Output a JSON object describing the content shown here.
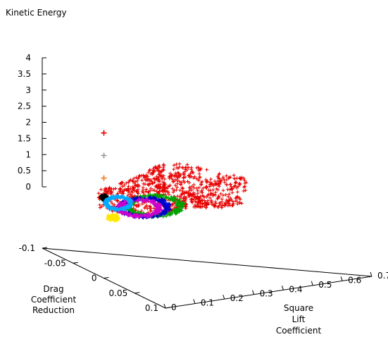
{
  "chart_data": {
    "type": "scatter",
    "projection": "3d",
    "title": "",
    "zlabel": "Kinetic Energy",
    "xlabel": "Square Lift Coefficient",
    "ylabel": "Drag Coefficient Reduction",
    "xlim": [
      0,
      0.7
    ],
    "ylim": [
      -0.1,
      0.1
    ],
    "zlim": [
      0,
      4
    ],
    "x_ticks": [
      "0",
      "0.1",
      "0.2",
      "0.3",
      "0.4",
      "0.5",
      "0.6",
      "0.7"
    ],
    "y_ticks": [
      "-0.1",
      "-0.05",
      "0",
      "0.05",
      "0.1"
    ],
    "z_ticks": [
      "0",
      "0.5",
      "1",
      "1.5",
      "2",
      "2.5",
      "3",
      "3.5",
      "4"
    ],
    "grid": false,
    "legend": "none",
    "series": [
      {
        "color": "#e60000",
        "marker": "plus",
        "kind": "cloud",
        "x_range": [
          0.05,
          0.65
        ],
        "y_range": [
          -0.05,
          0.08
        ],
        "z_range": [
          0.0,
          0.6
        ]
      },
      {
        "color": "#e60000",
        "marker": "plus",
        "kind": "point",
        "x": 0.0,
        "y": 0.0,
        "z": 2.6
      },
      {
        "color": "#999999",
        "marker": "plus",
        "kind": "point",
        "x": 0.0,
        "y": 0.0,
        "z": 1.9
      },
      {
        "color": "#f07820",
        "marker": "plus",
        "kind": "point",
        "x": 0.0,
        "y": 0.0,
        "z": 1.2
      },
      {
        "color": "#000000",
        "marker": "plus",
        "kind": "cluster",
        "x": 0.0,
        "y": 0.0,
        "z": 0.6
      },
      {
        "color": "#ffe600",
        "marker": "plus",
        "kind": "cluster",
        "x": 0.02,
        "y": 0.0,
        "z": 0.0
      },
      {
        "color": "#00a000",
        "marker": "plus",
        "kind": "ring",
        "cx": 0.22,
        "cy": 0.01,
        "z": 0.0
      },
      {
        "color": "#0000cc",
        "marker": "plus",
        "kind": "ring",
        "cx": 0.18,
        "cy": 0.01,
        "z": 0.0
      },
      {
        "color": "#cc00cc",
        "marker": "plus",
        "kind": "ring",
        "cx": 0.15,
        "cy": 0.01,
        "z": 0.0
      },
      {
        "color": "#00aaff",
        "marker": "plus",
        "kind": "ring",
        "cx": 0.06,
        "cy": 0.0,
        "z": 0.0
      }
    ]
  }
}
